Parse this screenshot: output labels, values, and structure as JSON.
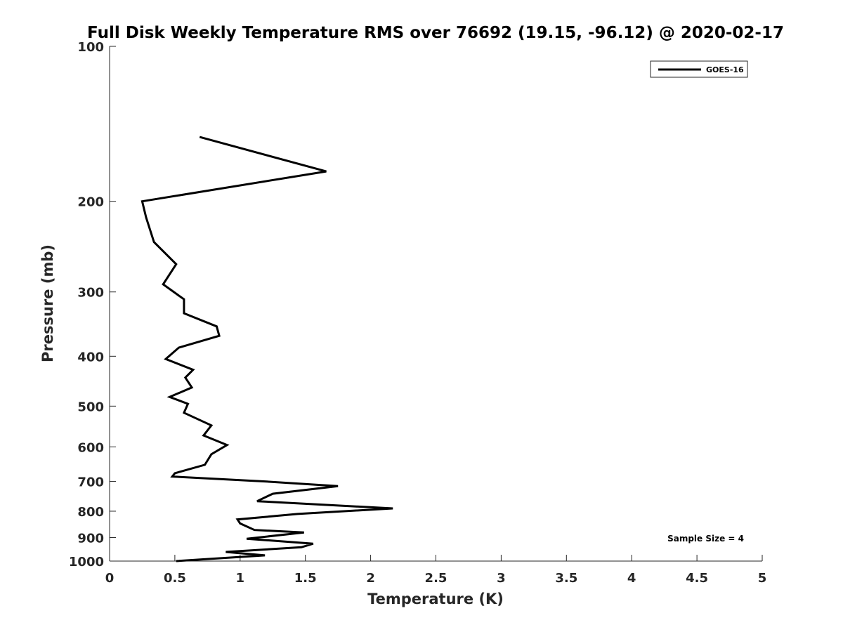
{
  "chart_data": {
    "type": "line",
    "title": "Full Disk Weekly Temperature RMS over 76692 (19.15, -96.12) @ 2020-02-17",
    "xlabel": "Temperature (K)",
    "ylabel": "Pressure (mb)",
    "xlim": [
      0,
      5
    ],
    "ylim": [
      100,
      1000
    ],
    "y_scale": "log",
    "y_reversed": true,
    "grid": false,
    "legend_position": "top-right",
    "x_ticks": [
      "0",
      "0.5",
      "1",
      "1.5",
      "2",
      "2.5",
      "3",
      "3.5",
      "4",
      "4.5",
      "5"
    ],
    "y_ticks": [
      "100",
      "200",
      "300",
      "400",
      "500",
      "600",
      "700",
      "800",
      "900",
      "1000"
    ],
    "annotation": "Sample Size = 4",
    "line_color": "#000000",
    "series": [
      {
        "name": "GOES-16",
        "x": [
          0.69,
          1.66,
          0.25,
          0.28,
          0.34,
          0.51,
          0.41,
          0.57,
          0.57,
          0.82,
          0.84,
          0.53,
          0.43,
          0.64,
          0.58,
          0.63,
          0.46,
          0.6,
          0.57,
          0.78,
          0.72,
          0.9,
          0.78,
          0.73,
          0.5,
          0.48,
          1.18,
          1.75,
          1.25,
          1.13,
          2.17,
          1.44,
          0.98,
          1.0,
          1.11,
          1.49,
          1.05,
          1.56,
          1.47,
          0.89,
          1.19,
          0.51
        ],
        "y": [
          150,
          175,
          200,
          215,
          240,
          265,
          290,
          310,
          330,
          350,
          365,
          385,
          405,
          425,
          440,
          460,
          480,
          495,
          515,
          545,
          570,
          595,
          620,
          650,
          675,
          685,
          700,
          715,
          740,
          765,
          790,
          810,
          830,
          845,
          870,
          880,
          905,
          925,
          940,
          960,
          975,
          1000
        ]
      }
    ]
  }
}
